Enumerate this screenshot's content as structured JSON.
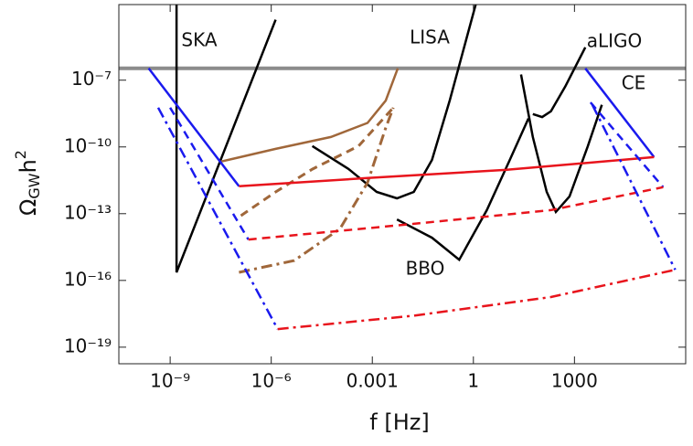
{
  "chart_data": {
    "type": "line",
    "log_x": true,
    "log_y": true,
    "x_label": "f [Hz]",
    "y_label": {
      "symbol": "Ω",
      "subscript": "GW",
      "base": "h",
      "superscript": "2"
    },
    "xlim": [
      3e-11,
      2000000.0
    ],
    "ylim": [
      1.8e-20,
      0.00025
    ],
    "xticks": [
      {
        "value": 1e-09,
        "label": "10⁻⁹"
      },
      {
        "value": 1e-06,
        "label": "10⁻⁶"
      },
      0.001,
      1,
      1000
    ],
    "yticks": [
      {
        "value": 1e-07,
        "label": "10⁻⁷"
      },
      {
        "value": 1e-10,
        "label": "10⁻¹⁰"
      },
      {
        "value": 1e-13,
        "label": "10⁻¹³"
      },
      {
        "value": 1e-16,
        "label": "10⁻¹⁶"
      },
      {
        "value": 1e-19,
        "label": "10⁻¹⁹"
      }
    ],
    "annotations": [
      "SKA",
      "LISA",
      "aLIGO",
      "CE",
      "BBO"
    ],
    "series": [
      {
        "color": "#8c8c8c",
        "dash": "solid",
        "width": 4,
        "x": [
          3e-11,
          2000000.0
        ],
        "values": [
          3.4e-07,
          3.4e-07
        ]
      },
      {
        "color": "#000000",
        "dash": "solid",
        "width": 2.5,
        "x": [
          1.55e-09,
          1.55e-09,
          1.35e-06
        ],
        "values": [
          0.00025,
          2.3e-16,
          5.2e-05
        ]
      },
      {
        "color": "#000000",
        "dash": "solid",
        "width": 2.5,
        "x": [
          1.66e-05,
          0.0002,
          0.00135,
          0.0054,
          0.017,
          0.059,
          0.2,
          1.17
        ],
        "values": [
          1.1e-10,
          1e-11,
          9.5e-13,
          4.9e-13,
          9.5e-13,
          2.6e-11,
          1.26e-08,
          0.00025
        ]
      },
      {
        "color": "#000000",
        "dash": "solid",
        "width": 2.5,
        "x": [
          0.0054,
          0.059,
          0.38,
          2.5,
          12,
          43
        ],
        "values": [
          5.5e-14,
          8.3e-15,
          8.5e-16,
          1.45e-13,
          2.6e-11,
          1.9e-09
        ]
      },
      {
        "color": "#000000",
        "dash": "solid",
        "width": 2.5,
        "x": [
          26,
          58,
          150,
          280,
          710,
          2500,
          6500
        ],
        "values": [
          1.8e-07,
          2.8e-10,
          9.5e-13,
          1.2e-13,
          5.9e-13,
          1.1e-10,
          7.8e-09
        ]
      },
      {
        "color": "#000000",
        "dash": "solid",
        "width": 2.5,
        "x": [
          58,
          110,
          200,
          530,
          2100
        ],
        "values": [
          3e-09,
          2.2e-09,
          4e-09,
          5.1e-08,
          3e-06
        ]
      },
      {
        "color": "#a0673a",
        "dash": "solid",
        "width": 2.5,
        "x": [
          3.2e-08,
          1.35e-06,
          5.9e-05,
          0.00072,
          0.0025,
          0.0057
        ],
        "values": [
          2.2e-11,
          8.2e-11,
          2.8e-10,
          1.2e-09,
          1.2e-08,
          3.4e-07
        ]
      },
      {
        "color": "#a0673a",
        "dash": "dashed",
        "width": 3,
        "x": [
          1.26e-07,
          1.35e-06,
          1.66e-05,
          0.00039,
          0.0042
        ],
        "values": [
          8.1e-14,
          9.5e-13,
          1e-11,
          1.1e-10,
          5.8e-09
        ]
      },
      {
        "color": "#a0673a",
        "dash": "dashdot",
        "width": 3,
        "x": [
          1.1e-07,
          4.8e-06,
          0.00011,
          0.00072,
          0.0025,
          0.0042
        ],
        "values": [
          2.3e-16,
          7.8e-16,
          2.1e-14,
          2.5e-12,
          7.2e-10,
          5.8e-09
        ]
      },
      {
        "color": "#1a1aee",
        "dash": "solid",
        "width": 2.5,
        "x": [
          2.3e-10,
          1.1e-07
        ],
        "values": [
          3.4e-07,
          1.7e-12
        ]
      },
      {
        "color": "#1a1aee",
        "dash": "solid",
        "width": 2.5,
        "x": [
          2100,
          230000.0
        ],
        "values": [
          3.4e-07,
          3.5e-11
        ]
      },
      {
        "color": "#e8141c",
        "dash": "solid",
        "width": 2.5,
        "x": [
          1.1e-07,
          0.00072,
          8.9,
          230000.0
        ],
        "values": [
          1.7e-12,
          4e-12,
          9.3e-12,
          3.5e-11
        ]
      },
      {
        "color": "#1a1aee",
        "dash": "dashed",
        "width": 2.5,
        "x": [
          1e-09,
          2.1e-07
        ],
        "values": [
          5.8e-09,
          6.9e-15
        ]
      },
      {
        "color": "#1a1aee",
        "dash": "dashed",
        "width": 2.5,
        "x": [
          3000,
          430000.0
        ],
        "values": [
          1e-08,
          1.55e-12
        ]
      },
      {
        "color": "#e8141c",
        "dash": "dashed",
        "width": 2.5,
        "x": [
          2.1e-07,
          0.017,
          200,
          430000.0
        ],
        "values": [
          6.9e-15,
          3.5e-14,
          1.45e-13,
          1.55e-12
        ]
      },
      {
        "color": "#1a1aee",
        "dash": "dashdot",
        "width": 2.5,
        "x": [
          4.4e-10,
          1.55e-06
        ],
        "values": [
          5.8e-09,
          6.5e-19
        ]
      },
      {
        "color": "#1a1aee",
        "dash": "dashdot",
        "width": 2.5,
        "x": [
          3400,
          980000.0
        ],
        "values": [
          7.8e-09,
          3e-16
        ]
      },
      {
        "color": "#e8141c",
        "dash": "dashdot",
        "width": 2.5,
        "x": [
          1.55e-06,
          0.017,
          200,
          980000.0
        ],
        "values": [
          6.5e-19,
          2.6e-18,
          1.8e-17,
          3e-16
        ]
      }
    ]
  }
}
